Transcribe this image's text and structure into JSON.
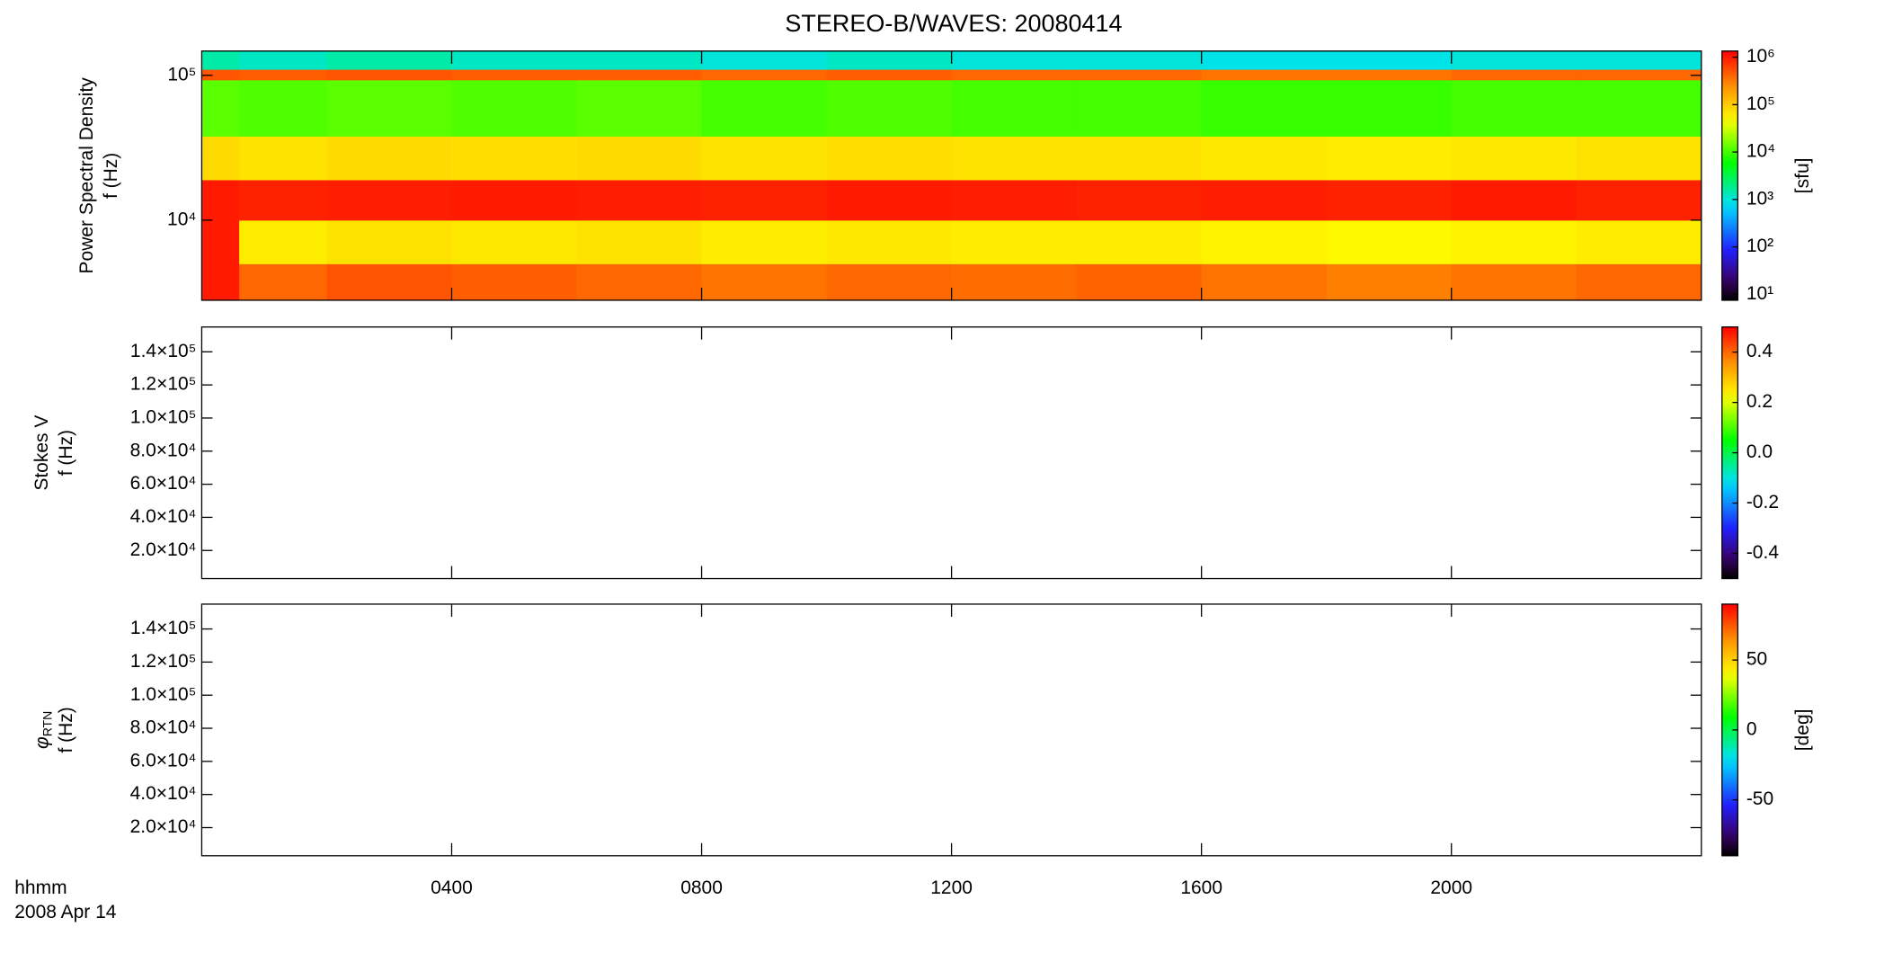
{
  "chart_data": [
    {
      "type": "heatmap",
      "title": "STEREO-B/WAVES: 20080414",
      "ylabel": [
        "Power Spectral Density",
        "f (Hz)"
      ],
      "ylog": true,
      "ylim": [
        2800,
        147000
      ],
      "yticks": [
        {
          "value": 10000,
          "label": "10⁴"
        },
        {
          "value": 100000,
          "label": "10⁵"
        }
      ],
      "x_edges": [
        0,
        0.6,
        2,
        4,
        6,
        8,
        10,
        12,
        14,
        16,
        18,
        20,
        22,
        24
      ],
      "y_edges": [
        2800,
        5000,
        10000,
        19000,
        38000,
        93000,
        110000,
        147000
      ],
      "z": [
        [
          1000000,
          400000,
          500000,
          450000,
          400000,
          350000,
          400000,
          380000,
          420000,
          350000,
          300000,
          350000,
          400000
        ],
        [
          1000000,
          60000,
          70000,
          65000,
          70000,
          60000,
          65000,
          60000,
          60000,
          55000,
          50000,
          55000,
          60000
        ],
        [
          1000000,
          900000,
          950000,
          1000000,
          950000,
          900000,
          1000000,
          950000,
          900000,
          950000,
          900000,
          1000000,
          900000
        ],
        [
          80000,
          70000,
          80000,
          75000,
          80000,
          70000,
          75000,
          70000,
          70000,
          65000,
          60000,
          65000,
          70000
        ],
        [
          12000,
          11000,
          12000,
          11000,
          12000,
          10000,
          11000,
          10000,
          10000,
          9000,
          9000,
          10000,
          10000
        ],
        [
          500000,
          450000,
          500000,
          450000,
          450000,
          400000,
          450000,
          400000,
          400000,
          350000,
          350000,
          400000,
          400000
        ],
        [
          1500,
          1200,
          1500,
          1200,
          1200,
          1000,
          1200,
          1000,
          1000,
          900,
          900,
          1000,
          1000
        ]
      ],
      "colormap": "rainbow",
      "zlog": true,
      "zlim": [
        7.5,
        1350000
      ],
      "zticks": [
        {
          "value": 10,
          "label": "10¹"
        },
        {
          "value": 100,
          "label": "10²"
        },
        {
          "value": 1000,
          "label": "10³"
        },
        {
          "value": 10000,
          "label": "10⁴"
        },
        {
          "value": 100000,
          "label": "10⁵"
        },
        {
          "value": 1000000,
          "label": "10⁶"
        }
      ],
      "zlabel": "[sfu]"
    },
    {
      "type": "heatmap",
      "ylabel": [
        "Stokes V",
        "f (Hz)"
      ],
      "ylog": false,
      "ylim": [
        3000,
        155000
      ],
      "yticks": [
        {
          "value": 20000,
          "label": "2.0×10⁴"
        },
        {
          "value": 40000,
          "label": "4.0×10⁴"
        },
        {
          "value": 60000,
          "label": "6.0×10⁴"
        },
        {
          "value": 80000,
          "label": "8.0×10⁴"
        },
        {
          "value": 100000,
          "label": "1.0×10⁵"
        },
        {
          "value": 120000,
          "label": "1.2×10⁵"
        },
        {
          "value": 140000,
          "label": "1.4×10⁵"
        }
      ],
      "colormap": "rainbow",
      "zlog": false,
      "zlim": [
        -0.5,
        0.5
      ],
      "zticks": [
        -0.4,
        -0.2,
        {
          "value": 0,
          "label": "0.0"
        },
        0.2,
        0.4
      ]
    },
    {
      "type": "heatmap",
      "ylabel_symbol": "φ",
      "ylabel_subscript": "RTN",
      "ylabel": [
        "f (Hz)"
      ],
      "ylog": false,
      "ylim": [
        3000,
        155000
      ],
      "yticks": [
        {
          "value": 20000,
          "label": "2.0×10⁴"
        },
        {
          "value": 40000,
          "label": "4.0×10⁴"
        },
        {
          "value": 60000,
          "label": "6.0×10⁴"
        },
        {
          "value": 80000,
          "label": "8.0×10⁴"
        },
        {
          "value": 100000,
          "label": "1.0×10⁵"
        },
        {
          "value": 120000,
          "label": "1.2×10⁵"
        },
        {
          "value": 140000,
          "label": "1.4×10⁵"
        }
      ],
      "colormap": "rainbow",
      "zlog": false,
      "zlim": [
        -90,
        90
      ],
      "zticks": [
        -50,
        0,
        50
      ],
      "zlabel": "[deg]",
      "xlim": [
        0,
        24
      ],
      "xticks": [
        {
          "value": 4,
          "label": "0400"
        },
        {
          "value": 8,
          "label": "0800"
        },
        {
          "value": 12,
          "label": "1200"
        },
        {
          "value": 16,
          "label": "1600"
        },
        {
          "value": 20,
          "label": "2000"
        }
      ],
      "xlabel": [
        "hhmm",
        "2008 Apr 14"
      ]
    }
  ]
}
